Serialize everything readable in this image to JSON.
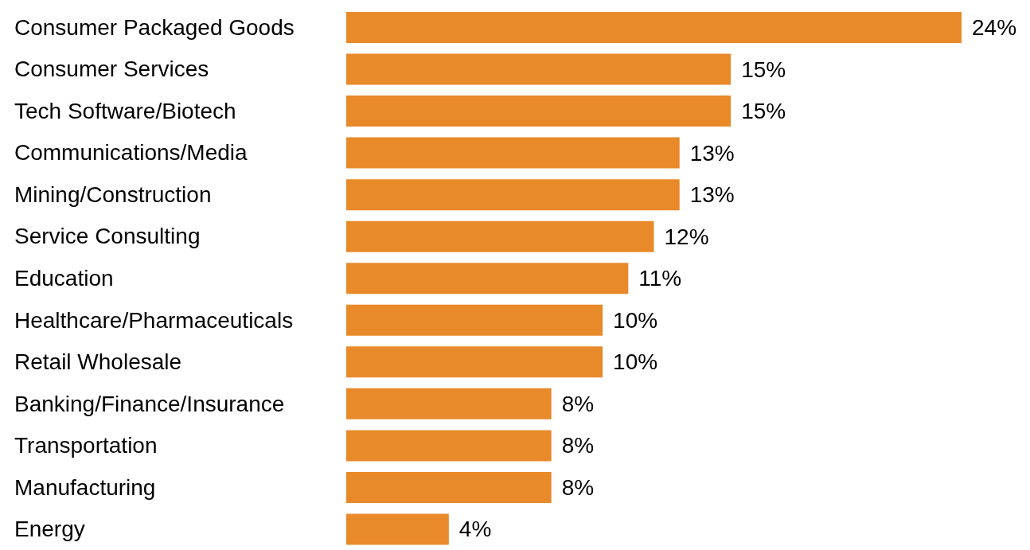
{
  "chart_data": {
    "type": "bar",
    "orientation": "horizontal",
    "categories": [
      "Consumer Packaged Goods",
      "Consumer Services",
      "Tech Software/Biotech",
      "Communications/Media",
      "Mining/Construction",
      "Service Consulting",
      "Education",
      "Healthcare/Pharmaceuticals",
      "Retail Wholesale",
      "Banking/Finance/Insurance",
      "Transportation",
      "Manufacturing",
      "Energy"
    ],
    "values": [
      24,
      15,
      15,
      13,
      13,
      12,
      11,
      10,
      10,
      8,
      8,
      8,
      4
    ],
    "value_labels": [
      "24%",
      "15%",
      "15%",
      "13%",
      "13%",
      "12%",
      "11%",
      "10%",
      "10%",
      "8%",
      "8%",
      "8%",
      "4%"
    ],
    "color": "#e8892a",
    "grid": false,
    "legend": false
  }
}
